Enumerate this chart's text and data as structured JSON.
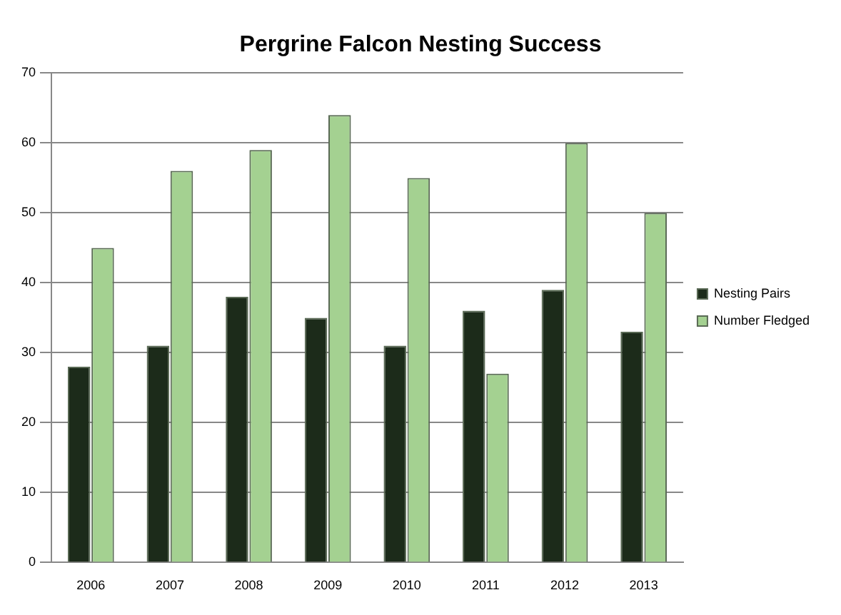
{
  "chart_data": {
    "type": "bar",
    "title": "Pergrine Falcon Nesting Success",
    "categories": [
      "2006",
      "2007",
      "2008",
      "2009",
      "2010",
      "2011",
      "2012",
      "2013"
    ],
    "series": [
      {
        "name": "Nesting Pairs",
        "color": "#1c2b1a",
        "values": [
          28,
          31,
          38,
          35,
          31,
          36,
          39,
          33
        ]
      },
      {
        "name": "Number Fledged",
        "color": "#a4d191",
        "values": [
          45,
          56,
          59,
          64,
          55,
          27,
          60,
          50
        ]
      }
    ],
    "ylim": [
      0,
      70
    ],
    "yticks": [
      0,
      10,
      20,
      30,
      40,
      50,
      60,
      70
    ],
    "grid": "y",
    "legend": "right"
  }
}
